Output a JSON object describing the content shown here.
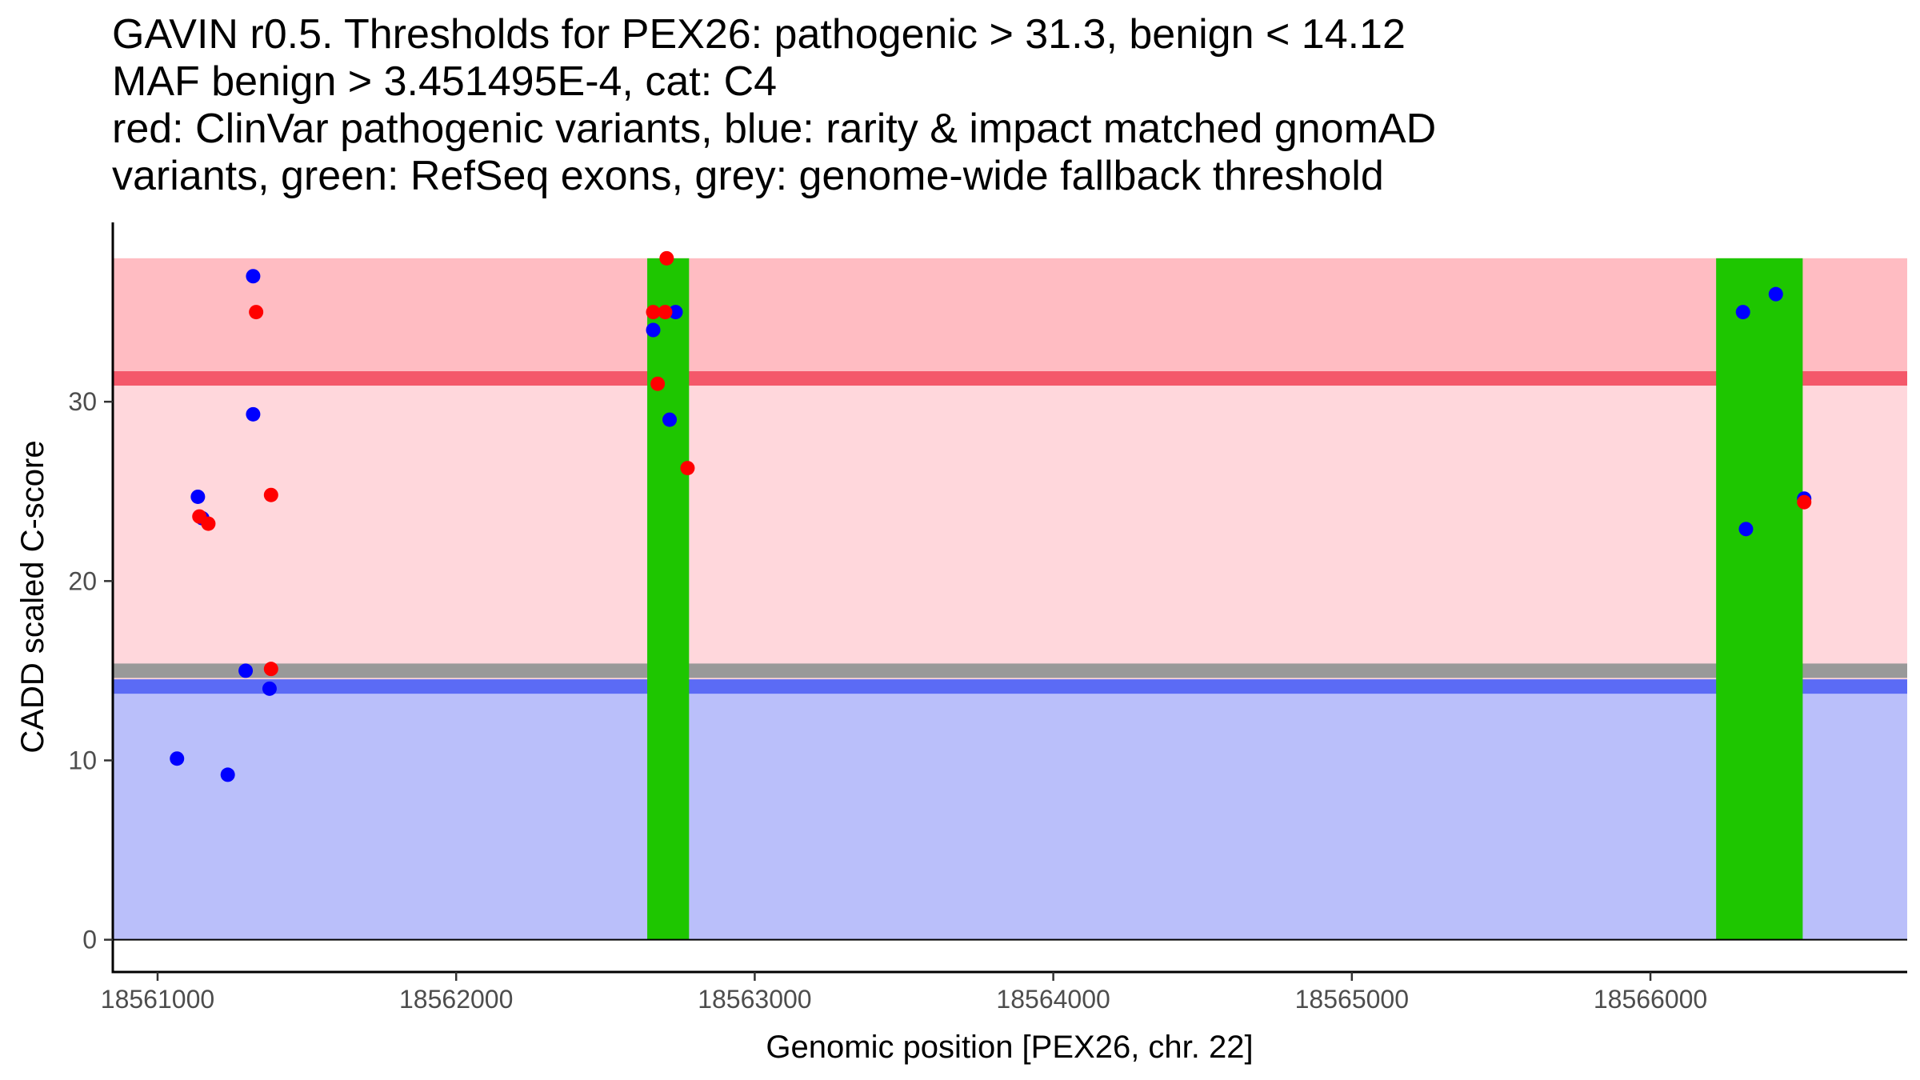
{
  "chart_data": {
    "type": "scatter",
    "title_lines": [
      "GAVIN r0.5. Thresholds for PEX26: pathogenic > 31.3, benign < 14.12",
      "MAF benign > 3.451495E-4, cat: C4",
      "red: ClinVar pathogenic variants, blue: rarity & impact matched gnomAD",
      "variants, green: RefSeq exons, grey: genome-wide fallback threshold"
    ],
    "xlabel": "Genomic position [PEX26, chr. 22]",
    "ylabel": "CADD scaled C-score",
    "xlim": [
      18560850,
      18566860
    ],
    "ylim": [
      -1.8,
      40
    ],
    "xticks": [
      18561000,
      18562000,
      18563000,
      18564000,
      18565000,
      18566000
    ],
    "xtick_labels": [
      "18561000",
      "18562000",
      "18563000",
      "18564000",
      "18565000",
      "18566000"
    ],
    "yticks": [
      0,
      10,
      20,
      30
    ],
    "ytick_labels": [
      "0",
      "10",
      "20",
      "30"
    ],
    "bands": [
      {
        "name": "benign-zone",
        "ymin": 0,
        "ymax": 14.12,
        "color": "#babffa"
      },
      {
        "name": "middle-zone",
        "ymin": 14.12,
        "ymax": 31.3,
        "color": "#ffd7dc"
      },
      {
        "name": "pathogenic-zone",
        "ymin": 31.3,
        "ymax": 38,
        "color": "#ffbcc2"
      }
    ],
    "threshold_lines": [
      {
        "name": "pathogenic-threshold",
        "y": 31.3,
        "color": "#f4586a"
      },
      {
        "name": "fallback-threshold",
        "y": 15.0,
        "color": "#999999"
      },
      {
        "name": "benign-threshold",
        "y": 14.12,
        "color": "#5b6bf5"
      }
    ],
    "exons": [
      {
        "start": 18562640,
        "end": 18562780,
        "color": "#1ec600"
      },
      {
        "start": 18566220,
        "end": 18566510,
        "color": "#1ec600"
      }
    ],
    "series": [
      {
        "name": "gnomAD variants",
        "color": "#0000ff",
        "points": [
          {
            "x": 18561065,
            "y": 10.1
          },
          {
            "x": 18561135,
            "y": 24.7
          },
          {
            "x": 18561150,
            "y": 23.5
          },
          {
            "x": 18561235,
            "y": 9.2
          },
          {
            "x": 18561295,
            "y": 15.0
          },
          {
            "x": 18561320,
            "y": 37.0
          },
          {
            "x": 18561320,
            "y": 29.3
          },
          {
            "x": 18561375,
            "y": 14.0
          },
          {
            "x": 18562660,
            "y": 34.0
          },
          {
            "x": 18562715,
            "y": 29.0
          },
          {
            "x": 18562735,
            "y": 35.0
          },
          {
            "x": 18566310,
            "y": 35.0
          },
          {
            "x": 18566320,
            "y": 22.9
          },
          {
            "x": 18566420,
            "y": 36.0
          },
          {
            "x": 18566515,
            "y": 24.6
          }
        ]
      },
      {
        "name": "ClinVar pathogenic variants",
        "color": "#ff0000",
        "points": [
          {
            "x": 18561140,
            "y": 23.6
          },
          {
            "x": 18561170,
            "y": 23.2
          },
          {
            "x": 18561330,
            "y": 35.0
          },
          {
            "x": 18561380,
            "y": 24.8
          },
          {
            "x": 18561380,
            "y": 15.1
          },
          {
            "x": 18562660,
            "y": 35.0
          },
          {
            "x": 18562675,
            "y": 31.0
          },
          {
            "x": 18562700,
            "y": 35.0
          },
          {
            "x": 18562705,
            "y": 38.0
          },
          {
            "x": 18562775,
            "y": 26.3
          },
          {
            "x": 18566515,
            "y": 24.4
          }
        ]
      }
    ]
  }
}
